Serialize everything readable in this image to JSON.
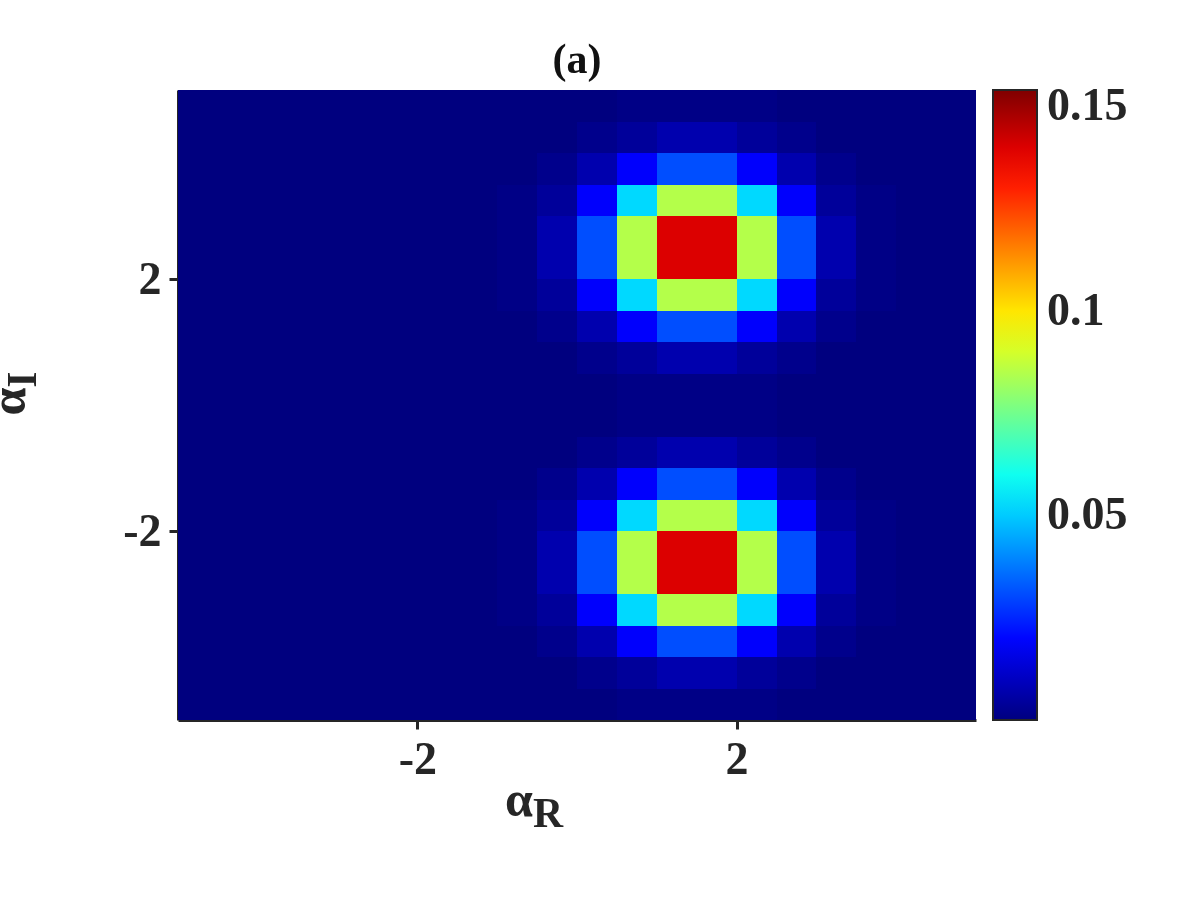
{
  "chart_data": {
    "type": "heatmap",
    "title": "(a)",
    "xlabel": "α$_{R}$",
    "ylabel": "α$_{I}$",
    "x": [
      -4.75,
      -4.25,
      -3.75,
      -3.25,
      -2.75,
      -2.25,
      -1.75,
      -1.25,
      -0.75,
      -0.25,
      0.25,
      0.75,
      1.25,
      1.75,
      2.25,
      2.75,
      3.25,
      3.75,
      4.25,
      4.75
    ],
    "y": [
      4.75,
      4.25,
      3.75,
      3.25,
      2.75,
      2.25,
      1.75,
      1.25,
      0.75,
      0.25,
      -0.25,
      -0.75,
      -1.25,
      -1.75,
      -2.25,
      -2.75,
      -3.25,
      -3.75,
      -4.25,
      -4.75
    ],
    "cells": [
      [
        0,
        0,
        0,
        0,
        0,
        0,
        0,
        0,
        0,
        0,
        0,
        0.001,
        0.001,
        0.001,
        0.001,
        0,
        0,
        0,
        0,
        0
      ],
      [
        0,
        0,
        0,
        0,
        0,
        0,
        0,
        0,
        0,
        0,
        0.002,
        0.004,
        0.007,
        0.007,
        0.004,
        0.002,
        0,
        0,
        0,
        0
      ],
      [
        0,
        0,
        0,
        0,
        0,
        0,
        0,
        0,
        0,
        0.002,
        0.007,
        0.019,
        0.031,
        0.031,
        0.019,
        0.007,
        0.002,
        0,
        0,
        0
      ],
      [
        0,
        0,
        0,
        0,
        0,
        0,
        0,
        0,
        0.001,
        0.004,
        0.019,
        0.052,
        0.085,
        0.085,
        0.052,
        0.019,
        0.004,
        0.001,
        0,
        0
      ],
      [
        0,
        0,
        0,
        0,
        0,
        0,
        0,
        0,
        0.001,
        0.007,
        0.031,
        0.085,
        0.14,
        0.14,
        0.085,
        0.031,
        0.007,
        0.001,
        0,
        0
      ],
      [
        0,
        0,
        0,
        0,
        0,
        0,
        0,
        0,
        0.001,
        0.007,
        0.031,
        0.085,
        0.14,
        0.14,
        0.085,
        0.031,
        0.007,
        0.001,
        0,
        0
      ],
      [
        0,
        0,
        0,
        0,
        0,
        0,
        0,
        0,
        0.001,
        0.004,
        0.019,
        0.052,
        0.085,
        0.085,
        0.052,
        0.019,
        0.004,
        0.001,
        0,
        0
      ],
      [
        0,
        0,
        0,
        0,
        0,
        0,
        0,
        0,
        0,
        0.002,
        0.007,
        0.019,
        0.031,
        0.031,
        0.019,
        0.007,
        0.002,
        0,
        0,
        0
      ],
      [
        0,
        0,
        0,
        0,
        0,
        0,
        0,
        0,
        0,
        0,
        0.002,
        0.004,
        0.007,
        0.007,
        0.004,
        0.002,
        0,
        0,
        0,
        0
      ],
      [
        0,
        0,
        0,
        0,
        0,
        0,
        0,
        0,
        0,
        0,
        0,
        0.001,
        0.001,
        0.001,
        0.001,
        0,
        0,
        0,
        0,
        0
      ],
      [
        0,
        0,
        0,
        0,
        0,
        0,
        0,
        0,
        0,
        0,
        0,
        0.001,
        0.001,
        0.001,
        0.001,
        0,
        0,
        0,
        0,
        0
      ],
      [
        0,
        0,
        0,
        0,
        0,
        0,
        0,
        0,
        0,
        0,
        0.002,
        0.004,
        0.007,
        0.007,
        0.004,
        0.002,
        0,
        0,
        0,
        0
      ],
      [
        0,
        0,
        0,
        0,
        0,
        0,
        0,
        0,
        0,
        0.002,
        0.007,
        0.019,
        0.031,
        0.031,
        0.019,
        0.007,
        0.002,
        0,
        0,
        0
      ],
      [
        0,
        0,
        0,
        0,
        0,
        0,
        0,
        0,
        0.001,
        0.004,
        0.019,
        0.052,
        0.085,
        0.085,
        0.052,
        0.019,
        0.004,
        0.001,
        0,
        0
      ],
      [
        0,
        0,
        0,
        0,
        0,
        0,
        0,
        0,
        0.001,
        0.007,
        0.031,
        0.085,
        0.14,
        0.14,
        0.085,
        0.031,
        0.007,
        0.001,
        0,
        0
      ],
      [
        0,
        0,
        0,
        0,
        0,
        0,
        0,
        0,
        0.001,
        0.007,
        0.031,
        0.085,
        0.14,
        0.14,
        0.085,
        0.031,
        0.007,
        0.001,
        0,
        0
      ],
      [
        0,
        0,
        0,
        0,
        0,
        0,
        0,
        0,
        0.001,
        0.004,
        0.019,
        0.052,
        0.085,
        0.085,
        0.052,
        0.019,
        0.004,
        0.001,
        0,
        0
      ],
      [
        0,
        0,
        0,
        0,
        0,
        0,
        0,
        0,
        0,
        0.002,
        0.007,
        0.019,
        0.031,
        0.031,
        0.019,
        0.007,
        0.002,
        0,
        0,
        0
      ],
      [
        0,
        0,
        0,
        0,
        0,
        0,
        0,
        0,
        0,
        0,
        0.002,
        0.004,
        0.007,
        0.007,
        0.004,
        0.002,
        0,
        0,
        0,
        0
      ],
      [
        0,
        0,
        0,
        0,
        0,
        0,
        0,
        0,
        0,
        0,
        0,
        0.001,
        0.001,
        0.001,
        0.001,
        0,
        0,
        0,
        0,
        0
      ]
    ],
    "xlim": [
      -5,
      5
    ],
    "ylim": [
      -5,
      5
    ],
    "xticks": [
      -2,
      2
    ],
    "yticks": [
      -2,
      2
    ],
    "clim": [
      0,
      0.154
    ],
    "cticks": [
      0.05,
      0.1,
      0.15
    ]
  }
}
